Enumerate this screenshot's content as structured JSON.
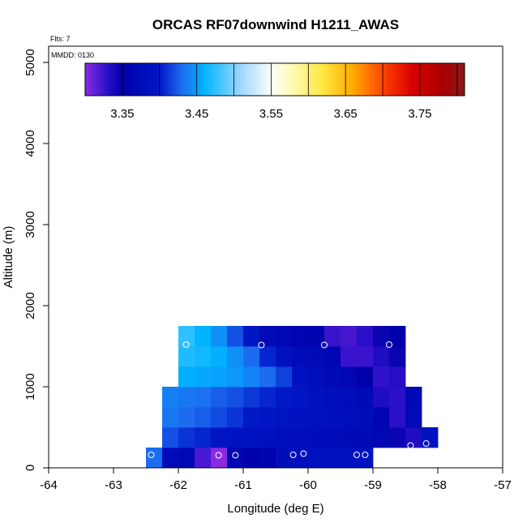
{
  "chart_data": {
    "type": "heatmap",
    "title": "ORCAS RF07downwind H1211_AWAS",
    "flights_label": "Flts: 7",
    "date_label": "MMDD: 0130",
    "xlabel": "Longitude (deg E)",
    "ylabel": "Altitude (m)",
    "xlim": [
      -64,
      -57
    ],
    "ylim": [
      0,
      5200
    ],
    "x_ticks": [
      "-64",
      "-63",
      "-62",
      "-61",
      "-60",
      "-59",
      "-58",
      "-57"
    ],
    "y_ticks": [
      "0",
      "1000",
      "2000",
      "3000",
      "4000",
      "5000"
    ],
    "colorbar": {
      "range": [
        3.3,
        3.81
      ],
      "tick_values": [
        3.35,
        3.45,
        3.55,
        3.65,
        3.75
      ],
      "tick_labels": [
        "3.35",
        "3.45",
        "3.55",
        "3.65",
        "3.75"
      ],
      "divisions": [
        3.35,
        3.4,
        3.45,
        3.5,
        3.55,
        3.6,
        3.65,
        3.7,
        3.75,
        3.8
      ],
      "stops": [
        {
          "v": 3.3,
          "color": "#8a2be2"
        },
        {
          "v": 3.33,
          "color": "#2a10c8"
        },
        {
          "v": 3.35,
          "color": "#0000aa"
        },
        {
          "v": 3.4,
          "color": "#0018c8"
        },
        {
          "v": 3.43,
          "color": "#1d6cf0"
        },
        {
          "v": 3.46,
          "color": "#00b4ff"
        },
        {
          "v": 3.51,
          "color": "#a0d8ff"
        },
        {
          "v": 3.55,
          "color": "#fafffa"
        },
        {
          "v": 3.58,
          "color": "#fffab0"
        },
        {
          "v": 3.62,
          "color": "#ffe640"
        },
        {
          "v": 3.66,
          "color": "#ffaa00"
        },
        {
          "v": 3.7,
          "color": "#ff4400"
        },
        {
          "v": 3.74,
          "color": "#d80000"
        },
        {
          "v": 3.78,
          "color": "#aa0000"
        },
        {
          "v": 3.81,
          "color": "#8b1a1a"
        }
      ]
    },
    "cell_width_deg": 0.25,
    "cell_height_m": 250,
    "cells": [
      {
        "x": -62.5,
        "y": 0,
        "v": 3.43
      },
      {
        "x": -62.25,
        "y": 0,
        "v": 3.375
      },
      {
        "x": -62.0,
        "y": 0,
        "v": 3.368
      },
      {
        "x": -61.75,
        "y": 0,
        "v": 3.32
      },
      {
        "x": -61.5,
        "y": 0,
        "v": 3.3
      },
      {
        "x": -61.25,
        "y": 0,
        "v": 3.365
      },
      {
        "x": -61.0,
        "y": 0,
        "v": 3.352
      },
      {
        "x": -60.75,
        "y": 0,
        "v": 3.357
      },
      {
        "x": -60.5,
        "y": 0,
        "v": 3.378
      },
      {
        "x": -60.25,
        "y": 0,
        "v": 3.382
      },
      {
        "x": -60.0,
        "y": 0,
        "v": 3.385
      },
      {
        "x": -59.75,
        "y": 0,
        "v": 3.386
      },
      {
        "x": -59.5,
        "y": 0,
        "v": 3.387
      },
      {
        "x": -59.25,
        "y": 0,
        "v": 3.385
      },
      {
        "x": -62.25,
        "y": 250,
        "v": 3.42
      },
      {
        "x": -62.0,
        "y": 250,
        "v": 3.41
      },
      {
        "x": -61.75,
        "y": 250,
        "v": 3.405
      },
      {
        "x": -61.5,
        "y": 250,
        "v": 3.392
      },
      {
        "x": -61.25,
        "y": 250,
        "v": 3.39
      },
      {
        "x": -61.0,
        "y": 250,
        "v": 3.388
      },
      {
        "x": -60.75,
        "y": 250,
        "v": 3.385
      },
      {
        "x": -60.5,
        "y": 250,
        "v": 3.382
      },
      {
        "x": -60.25,
        "y": 250,
        "v": 3.38
      },
      {
        "x": -60.0,
        "y": 250,
        "v": 3.378
      },
      {
        "x": -59.75,
        "y": 250,
        "v": 3.375
      },
      {
        "x": -59.5,
        "y": 250,
        "v": 3.372
      },
      {
        "x": -59.25,
        "y": 250,
        "v": 3.37
      },
      {
        "x": -59.0,
        "y": 250,
        "v": 3.365
      },
      {
        "x": -58.75,
        "y": 250,
        "v": 3.345
      },
      {
        "x": -58.5,
        "y": 250,
        "v": 3.335
      },
      {
        "x": -58.25,
        "y": 250,
        "v": 3.39
      },
      {
        "x": -62.25,
        "y": 500,
        "v": 3.435
      },
      {
        "x": -62.0,
        "y": 500,
        "v": 3.43
      },
      {
        "x": -61.75,
        "y": 500,
        "v": 3.425
      },
      {
        "x": -61.5,
        "y": 500,
        "v": 3.418
      },
      {
        "x": -61.25,
        "y": 500,
        "v": 3.41
      },
      {
        "x": -61.0,
        "y": 500,
        "v": 3.4
      },
      {
        "x": -60.75,
        "y": 500,
        "v": 3.395
      },
      {
        "x": -60.5,
        "y": 500,
        "v": 3.39
      },
      {
        "x": -60.25,
        "y": 500,
        "v": 3.388
      },
      {
        "x": -60.0,
        "y": 500,
        "v": 3.385
      },
      {
        "x": -59.75,
        "y": 500,
        "v": 3.383
      },
      {
        "x": -59.5,
        "y": 500,
        "v": 3.38
      },
      {
        "x": -59.25,
        "y": 500,
        "v": 3.378
      },
      {
        "x": -59.0,
        "y": 500,
        "v": 3.36
      },
      {
        "x": -58.75,
        "y": 500,
        "v": 3.33
      },
      {
        "x": -58.5,
        "y": 500,
        "v": 3.37
      },
      {
        "x": -62.25,
        "y": 750,
        "v": 3.438
      },
      {
        "x": -62.0,
        "y": 750,
        "v": 3.435
      },
      {
        "x": -61.75,
        "y": 750,
        "v": 3.432
      },
      {
        "x": -61.5,
        "y": 750,
        "v": 3.425
      },
      {
        "x": -61.25,
        "y": 750,
        "v": 3.42
      },
      {
        "x": -61.0,
        "y": 750,
        "v": 3.412
      },
      {
        "x": -60.75,
        "y": 750,
        "v": 3.405
      },
      {
        "x": -60.5,
        "y": 750,
        "v": 3.4
      },
      {
        "x": -60.25,
        "y": 750,
        "v": 3.395
      },
      {
        "x": -60.0,
        "y": 750,
        "v": 3.385
      },
      {
        "x": -59.75,
        "y": 750,
        "v": 3.382
      },
      {
        "x": -59.5,
        "y": 750,
        "v": 3.378
      },
      {
        "x": -59.25,
        "y": 750,
        "v": 3.37
      },
      {
        "x": -59.0,
        "y": 750,
        "v": 3.335
      },
      {
        "x": -58.75,
        "y": 750,
        "v": 3.33
      },
      {
        "x": -58.5,
        "y": 750,
        "v": 3.368
      },
      {
        "x": -62.0,
        "y": 1000,
        "v": 3.458
      },
      {
        "x": -61.75,
        "y": 1000,
        "v": 3.455
      },
      {
        "x": -61.5,
        "y": 1000,
        "v": 3.452
      },
      {
        "x": -61.25,
        "y": 1000,
        "v": 3.448
      },
      {
        "x": -61.0,
        "y": 1000,
        "v": 3.44
      },
      {
        "x": -60.75,
        "y": 1000,
        "v": 3.43
      },
      {
        "x": -60.5,
        "y": 1000,
        "v": 3.415
      },
      {
        "x": -60.25,
        "y": 1000,
        "v": 3.39
      },
      {
        "x": -60.0,
        "y": 1000,
        "v": 3.38
      },
      {
        "x": -59.75,
        "y": 1000,
        "v": 3.37
      },
      {
        "x": -59.5,
        "y": 1000,
        "v": 3.365
      },
      {
        "x": -59.25,
        "y": 1000,
        "v": 3.35
      },
      {
        "x": -59.0,
        "y": 1000,
        "v": 3.328
      },
      {
        "x": -58.75,
        "y": 1000,
        "v": 3.332
      },
      {
        "x": -62.0,
        "y": 1250,
        "v": 3.47
      },
      {
        "x": -61.75,
        "y": 1250,
        "v": 3.465
      },
      {
        "x": -61.5,
        "y": 1250,
        "v": 3.458
      },
      {
        "x": -61.25,
        "y": 1250,
        "v": 3.445
      },
      {
        "x": -61.0,
        "y": 1250,
        "v": 3.43
      },
      {
        "x": -60.75,
        "y": 1250,
        "v": 3.405
      },
      {
        "x": -60.5,
        "y": 1250,
        "v": 3.385
      },
      {
        "x": -60.25,
        "y": 1250,
        "v": 3.375
      },
      {
        "x": -60.0,
        "y": 1250,
        "v": 3.37
      },
      {
        "x": -59.75,
        "y": 1250,
        "v": 3.362
      },
      {
        "x": -59.5,
        "y": 1250,
        "v": 3.325
      },
      {
        "x": -59.25,
        "y": 1250,
        "v": 3.325
      },
      {
        "x": -59.0,
        "y": 1250,
        "v": 3.335
      },
      {
        "x": -58.75,
        "y": 1250,
        "v": 3.345
      },
      {
        "x": -62.0,
        "y": 1500,
        "v": 3.475
      },
      {
        "x": -61.75,
        "y": 1500,
        "v": 3.46
      },
      {
        "x": -61.5,
        "y": 1500,
        "v": 3.445
      },
      {
        "x": -61.25,
        "y": 1500,
        "v": 3.42
      },
      {
        "x": -61.0,
        "y": 1500,
        "v": 3.395
      },
      {
        "x": -60.75,
        "y": 1500,
        "v": 3.37
      },
      {
        "x": -60.5,
        "y": 1500,
        "v": 3.365
      },
      {
        "x": -60.25,
        "y": 1500,
        "v": 3.36
      },
      {
        "x": -60.0,
        "y": 1500,
        "v": 3.358
      },
      {
        "x": -59.75,
        "y": 1500,
        "v": 3.325
      },
      {
        "x": -59.5,
        "y": 1500,
        "v": 3.322
      },
      {
        "x": -59.25,
        "y": 1500,
        "v": 3.33
      },
      {
        "x": -59.0,
        "y": 1500,
        "v": 3.345
      },
      {
        "x": -58.75,
        "y": 1500,
        "v": 3.35
      }
    ],
    "sample_points": [
      {
        "x": -62.42,
        "y": 160
      },
      {
        "x": -61.38,
        "y": 155
      },
      {
        "x": -61.12,
        "y": 155
      },
      {
        "x": -60.23,
        "y": 160
      },
      {
        "x": -60.07,
        "y": 175
      },
      {
        "x": -59.25,
        "y": 160
      },
      {
        "x": -59.12,
        "y": 160
      },
      {
        "x": -58.42,
        "y": 275
      },
      {
        "x": -58.18,
        "y": 300
      },
      {
        "x": -61.88,
        "y": 1520
      },
      {
        "x": -60.72,
        "y": 1515
      },
      {
        "x": -59.75,
        "y": 1515
      },
      {
        "x": -58.75,
        "y": 1520
      }
    ]
  }
}
